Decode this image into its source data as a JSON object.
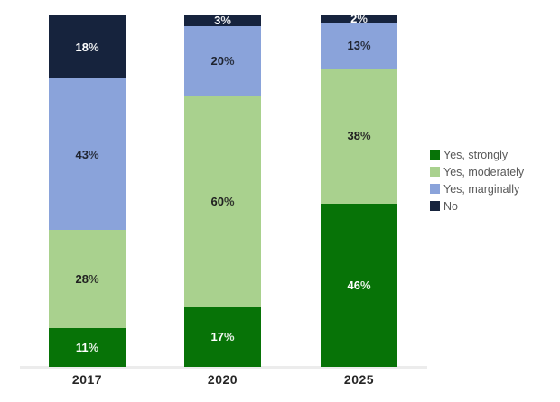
{
  "chart_data": {
    "type": "bar",
    "variant": "stacked-percent-column",
    "title": "",
    "xlabel": "",
    "ylabel": "",
    "categories": [
      "2017",
      "2020",
      "2025"
    ],
    "series": [
      {
        "name": "Yes, strongly",
        "color": "#077307",
        "label_color": "#ffffff",
        "values": [
          11,
          17,
          46
        ]
      },
      {
        "name": "Yes, moderately",
        "color": "#A9D18E",
        "label_color": "#212121",
        "values": [
          28,
          60,
          38
        ]
      },
      {
        "name": "Yes, marginally",
        "color": "#8AA3DA",
        "label_color": "#1F2430",
        "values": [
          43,
          20,
          13
        ]
      },
      {
        "name": "No",
        "color": "#16233D",
        "label_color": "#ffffff",
        "values": [
          18,
          3,
          2
        ]
      }
    ],
    "value_suffix": "%",
    "ylim": [
      0,
      100
    ],
    "gridlines": false,
    "legend_position": "right"
  },
  "legend": {
    "items": [
      {
        "label": "Yes, strongly",
        "color": "#077307"
      },
      {
        "label": "Yes, moderately",
        "color": "#A9D18E"
      },
      {
        "label": "Yes, marginally",
        "color": "#8AA3DA"
      },
      {
        "label": "No",
        "color": "#16233D"
      }
    ]
  },
  "x_axis": {
    "labels": [
      "2017",
      "2020",
      "2025"
    ]
  }
}
